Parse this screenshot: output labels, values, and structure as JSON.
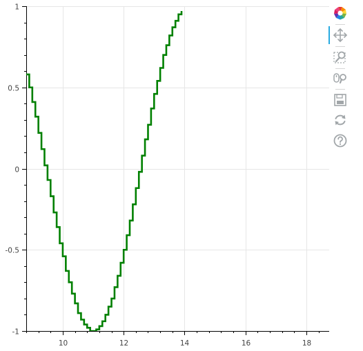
{
  "chart_data": {
    "type": "line",
    "style": "step",
    "title": "",
    "xlabel": "",
    "ylabel": "",
    "xlim": [
      8.8,
      18.75
    ],
    "ylim": [
      -1,
      1
    ],
    "grid": true,
    "x_ticks": [
      10,
      12,
      14,
      16,
      18
    ],
    "y_ticks": [
      -1,
      -0.5,
      0,
      0.5,
      1
    ],
    "x_tick_labels": [
      "10",
      "12",
      "14",
      "16",
      "18"
    ],
    "y_tick_labels": [
      "-1",
      "-0.5",
      "0",
      "0.5",
      "1"
    ],
    "series": [
      {
        "name": "",
        "color": "#008000",
        "x": [
          8.8,
          8.9,
          9.0,
          9.1,
          9.2,
          9.3,
          9.4,
          9.5,
          9.6,
          9.7,
          9.8,
          9.9,
          10.0,
          10.1,
          10.2,
          10.3,
          10.4,
          10.5,
          10.6,
          10.7,
          10.8,
          10.9,
          11.0,
          11.1,
          11.2,
          11.3,
          11.4,
          11.5,
          11.6,
          11.7,
          11.8,
          11.9,
          12.0,
          12.1,
          12.2,
          12.3,
          12.4,
          12.5,
          12.6,
          12.7,
          12.8,
          12.9,
          13.0,
          13.1,
          13.2,
          13.3,
          13.4,
          13.5,
          13.6,
          13.7,
          13.8,
          13.9
        ],
        "y": [
          0.58,
          0.5,
          0.41,
          0.32,
          0.22,
          0.12,
          0.02,
          -0.07,
          -0.17,
          -0.27,
          -0.36,
          -0.46,
          -0.54,
          -0.63,
          -0.7,
          -0.77,
          -0.83,
          -0.89,
          -0.93,
          -0.96,
          -0.98,
          -1.0,
          -1.0,
          -0.99,
          -0.97,
          -0.94,
          -0.9,
          -0.85,
          -0.8,
          -0.73,
          -0.66,
          -0.58,
          -0.5,
          -0.41,
          -0.32,
          -0.22,
          -0.12,
          -0.02,
          0.08,
          0.18,
          0.27,
          0.37,
          0.46,
          0.54,
          0.62,
          0.7,
          0.76,
          0.82,
          0.87,
          0.91,
          0.95,
          0.97
        ]
      }
    ]
  },
  "toolbar": {
    "tools": [
      {
        "name": "bokeh-logo-icon",
        "interactable": false
      },
      {
        "name": "pan-icon",
        "interactable": true,
        "active": true
      },
      {
        "name": "box-zoom-icon",
        "interactable": true
      },
      {
        "name": "wheel-zoom-icon",
        "interactable": true
      },
      {
        "name": "save-icon",
        "interactable": true
      },
      {
        "name": "reset-icon",
        "interactable": true
      },
      {
        "name": "help-icon",
        "interactable": true
      }
    ],
    "icon_color": "#a1a6a9",
    "active_color": "#26aae1"
  }
}
